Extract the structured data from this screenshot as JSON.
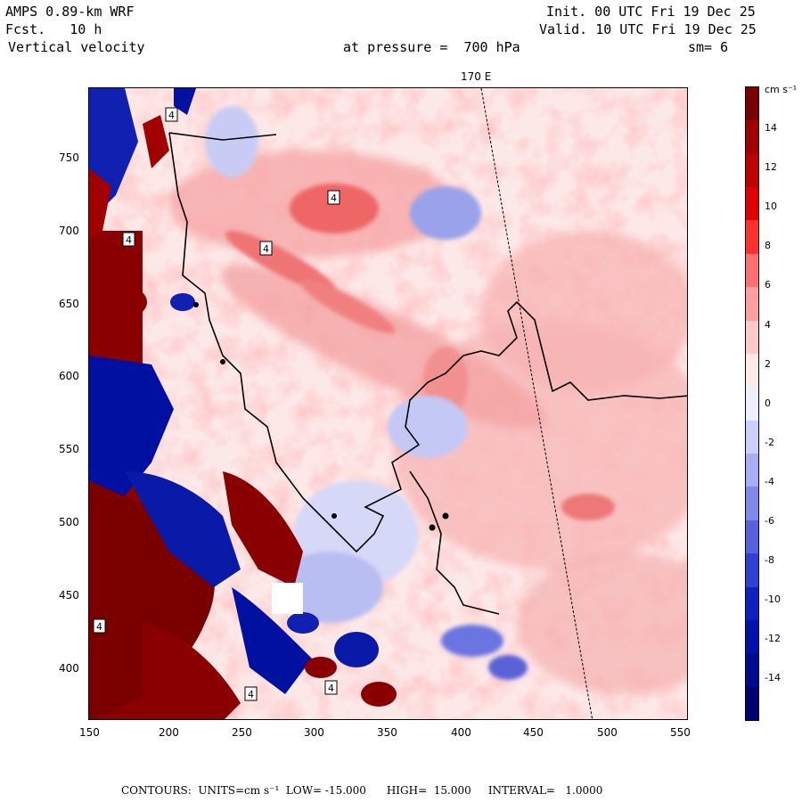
{
  "header": {
    "model": "AMPS 0.89-km WRF",
    "forecast": "Fcst.   10 h",
    "field": "Vertical velocity",
    "init": "Init. 00 UTC Fri 19 Dec 25",
    "valid": "Valid. 10 UTC Fri 19 Dec 25",
    "level": "at pressure =  700 hPa",
    "smoothing": "sm= 6"
  },
  "map": {
    "meridian_label": "170 E",
    "x_ticks": [
      "150",
      "200",
      "250",
      "300",
      "350",
      "400",
      "450",
      "500",
      "550"
    ],
    "y_ticks": [
      "750",
      "700",
      "650",
      "600",
      "550",
      "500",
      "450",
      "400"
    ],
    "box_label": "4"
  },
  "colorbar": {
    "units": "cm s⁻¹",
    "labels": [
      "14",
      "12",
      "10",
      "8",
      "6",
      "4",
      "2",
      "0",
      "-2",
      "-4",
      "-6",
      "-8",
      "-10",
      "-12",
      "-14"
    ],
    "colors": [
      "#7a0000",
      "#a00000",
      "#c00000",
      "#e00000",
      "#ff3030",
      "#ff7070",
      "#ff9f9f",
      "#ffc8c8",
      "#ffe9e9",
      "#eeeeff",
      "#ccd0ff",
      "#a8adf5",
      "#8088ea",
      "#5860dd",
      "#3040d0",
      "#1020c0",
      "#0010a8",
      "#000a90",
      "#000070"
    ]
  },
  "footer": {
    "text": "CONTOURS:  UNITS=cm s⁻¹  LOW= -15.000      HIGH=  15.000     INTERVAL=   1.0000"
  }
}
